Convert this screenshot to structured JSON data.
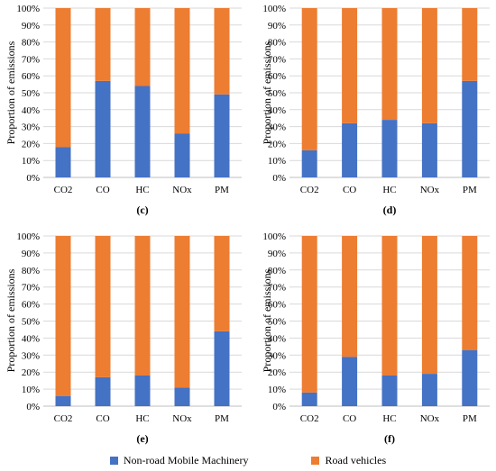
{
  "chart_data": [
    {
      "type": "bar",
      "stacked": true,
      "panel_label": "(c)",
      "ylabel": "Proportion of emissions",
      "categories": [
        "CO2",
        "CO",
        "HC",
        "NOx",
        "PM"
      ],
      "ylim": [
        0,
        100
      ],
      "yticks": [
        "0%",
        "10%",
        "20%",
        "30%",
        "40%",
        "50%",
        "60%",
        "70%",
        "80%",
        "90%",
        "100%"
      ],
      "series": [
        {
          "name": "Non-road Mobile Machinery",
          "values": [
            18,
            57,
            54,
            26,
            49
          ]
        },
        {
          "name": "Road vehicles",
          "values": [
            82,
            43,
            46,
            74,
            51
          ]
        }
      ]
    },
    {
      "type": "bar",
      "stacked": true,
      "panel_label": "(d)",
      "ylabel": "Proportion of emissions",
      "categories": [
        "CO2",
        "CO",
        "HC",
        "NOx",
        "PM"
      ],
      "ylim": [
        0,
        100
      ],
      "yticks": [
        "0%",
        "10%",
        "20%",
        "30%",
        "40%",
        "50%",
        "60%",
        "70%",
        "80%",
        "90%",
        "100%"
      ],
      "series": [
        {
          "name": "Non-road Mobile Machinery",
          "values": [
            16,
            32,
            34,
            32,
            57
          ]
        },
        {
          "name": "Road vehicles",
          "values": [
            84,
            68,
            66,
            68,
            43
          ]
        }
      ]
    },
    {
      "type": "bar",
      "stacked": true,
      "panel_label": "(e)",
      "ylabel": "Proportion of emissions",
      "categories": [
        "CO2",
        "CO",
        "HC",
        "NOx",
        "PM"
      ],
      "ylim": [
        0,
        100
      ],
      "yticks": [
        "0%",
        "10%",
        "20%",
        "30%",
        "40%",
        "50%",
        "60%",
        "70%",
        "80%",
        "90%",
        "100%"
      ],
      "series": [
        {
          "name": "Non-road Mobile Machinery",
          "values": [
            6,
            17,
            18,
            11,
            44
          ]
        },
        {
          "name": "Road vehicles",
          "values": [
            94,
            83,
            82,
            89,
            56
          ]
        }
      ]
    },
    {
      "type": "bar",
      "stacked": true,
      "panel_label": "(f)",
      "ylabel": "Proportion of emissions",
      "categories": [
        "CO2",
        "CO",
        "HC",
        "NOx",
        "PM"
      ],
      "ylim": [
        0,
        100
      ],
      "yticks": [
        "0%",
        "10%",
        "20%",
        "30%",
        "40%",
        "50%",
        "60%",
        "70%",
        "80%",
        "90%",
        "100%"
      ],
      "series": [
        {
          "name": "Non-road Mobile Machinery",
          "values": [
            8,
            29,
            18,
            19,
            33
          ]
        },
        {
          "name": "Road vehicles",
          "values": [
            92,
            71,
            82,
            81,
            67
          ]
        }
      ]
    }
  ],
  "legend": {
    "items": [
      {
        "label": "Non-road Mobile Machinery",
        "color": "#4472c4"
      },
      {
        "label": "Road vehicles",
        "color": "#ed7d31"
      }
    ],
    "placement": "bottom"
  },
  "colors": {
    "grid": "#d9d9d9",
    "axis": "#bfbfbf"
  }
}
